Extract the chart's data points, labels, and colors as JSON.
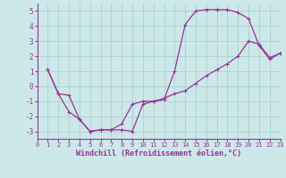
{
  "xlabel": "Windchill (Refroidissement éolien,°C)",
  "line1_x": [
    1,
    2,
    3,
    4,
    5,
    6,
    7,
    8,
    9,
    10,
    11,
    12,
    13,
    14,
    15,
    16,
    17,
    18,
    19,
    20,
    21,
    22,
    23
  ],
  "line1_y": [
    1.1,
    -0.5,
    -1.7,
    -2.2,
    -3.0,
    -2.9,
    -2.9,
    -2.9,
    -3.0,
    -1.2,
    -1.0,
    -0.9,
    1.0,
    4.1,
    5.0,
    5.1,
    5.1,
    5.1,
    4.9,
    4.5,
    2.7,
    1.8,
    2.2
  ],
  "line2_x": [
    1,
    2,
    3,
    4,
    5,
    6,
    7,
    8,
    9,
    10,
    11,
    12,
    13,
    14,
    15,
    16,
    17,
    18,
    19,
    20,
    21,
    22,
    23
  ],
  "line2_y": [
    1.1,
    -0.5,
    -0.6,
    -2.2,
    -3.0,
    -2.9,
    -2.9,
    -2.5,
    -1.2,
    -1.0,
    -1.0,
    -0.8,
    -0.5,
    -0.3,
    0.2,
    0.7,
    1.1,
    1.5,
    2.0,
    3.0,
    2.8,
    1.9,
    2.2
  ],
  "line_color": "#993399",
  "bg_color": "#cce8e8",
  "grid_color": "#aacccc",
  "tick_color": "#993399",
  "xlabel_color": "#993399",
  "xlim": [
    0,
    23
  ],
  "ylim": [
    -3.5,
    5.5
  ],
  "yticks": [
    -3,
    -2,
    -1,
    0,
    1,
    2,
    3,
    4,
    5
  ],
  "xticks": [
    0,
    1,
    2,
    3,
    4,
    5,
    6,
    7,
    8,
    9,
    10,
    11,
    12,
    13,
    14,
    15,
    16,
    17,
    18,
    19,
    20,
    21,
    22,
    23
  ],
  "markersize": 2.5,
  "linewidth": 0.9
}
